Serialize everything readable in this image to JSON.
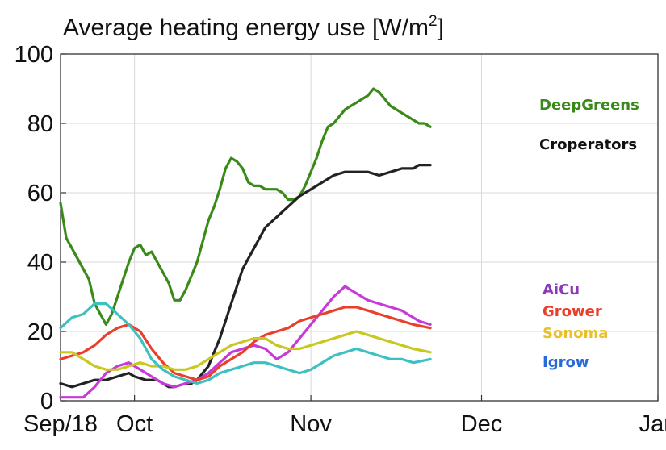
{
  "chart_data": {
    "type": "line",
    "title": "Average heating energy use [W/m",
    "title_sup": "2",
    "title_end": "]",
    "xlabel": "",
    "ylabel": "",
    "ylim": [
      0,
      100
    ],
    "xlim": [
      "2018-09-18",
      "2019-01-01"
    ],
    "y_ticks": [
      0,
      20,
      40,
      60,
      80,
      100
    ],
    "x_ticks": [
      {
        "date": "2018-09-18",
        "label": "Sep/18"
      },
      {
        "date": "2018-10-01",
        "label": "Oct"
      },
      {
        "date": "2018-11-01",
        "label": "Nov"
      },
      {
        "date": "2018-12-01",
        "label": "Dec"
      },
      {
        "date": "2019-01-01",
        "label": "Jan"
      }
    ],
    "grid": true,
    "series": [
      {
        "name": "DeepGreens",
        "color": "#3a8a1a",
        "label_color": "#3a8a1a",
        "points": [
          [
            "2018-09-18",
            57
          ],
          [
            "2018-09-19",
            47
          ],
          [
            "2018-09-20",
            44
          ],
          [
            "2018-09-21",
            41
          ],
          [
            "2018-09-22",
            38
          ],
          [
            "2018-09-23",
            35
          ],
          [
            "2018-09-24",
            28
          ],
          [
            "2018-09-25",
            25
          ],
          [
            "2018-09-26",
            22
          ],
          [
            "2018-09-27",
            25
          ],
          [
            "2018-09-28",
            30
          ],
          [
            "2018-09-29",
            35
          ],
          [
            "2018-09-30",
            40
          ],
          [
            "2018-10-01",
            44
          ],
          [
            "2018-10-02",
            45
          ],
          [
            "2018-10-03",
            42
          ],
          [
            "2018-10-04",
            43
          ],
          [
            "2018-10-05",
            40
          ],
          [
            "2018-10-06",
            37
          ],
          [
            "2018-10-07",
            34
          ],
          [
            "2018-10-08",
            29
          ],
          [
            "2018-10-09",
            29
          ],
          [
            "2018-10-10",
            32
          ],
          [
            "2018-10-11",
            36
          ],
          [
            "2018-10-12",
            40
          ],
          [
            "2018-10-13",
            46
          ],
          [
            "2018-10-14",
            52
          ],
          [
            "2018-10-15",
            56
          ],
          [
            "2018-10-16",
            61
          ],
          [
            "2018-10-17",
            67
          ],
          [
            "2018-10-18",
            70
          ],
          [
            "2018-10-19",
            69
          ],
          [
            "2018-10-20",
            67
          ],
          [
            "2018-10-21",
            63
          ],
          [
            "2018-10-22",
            62
          ],
          [
            "2018-10-23",
            62
          ],
          [
            "2018-10-24",
            61
          ],
          [
            "2018-10-25",
            61
          ],
          [
            "2018-10-26",
            61
          ],
          [
            "2018-10-27",
            60
          ],
          [
            "2018-10-28",
            58
          ],
          [
            "2018-10-29",
            58
          ],
          [
            "2018-10-30",
            59
          ],
          [
            "2018-10-31",
            62
          ],
          [
            "2018-11-01",
            66
          ],
          [
            "2018-11-02",
            70
          ],
          [
            "2018-11-03",
            75
          ],
          [
            "2018-11-04",
            79
          ],
          [
            "2018-11-05",
            80
          ],
          [
            "2018-11-06",
            82
          ],
          [
            "2018-11-07",
            84
          ],
          [
            "2018-11-08",
            85
          ],
          [
            "2018-11-09",
            86
          ],
          [
            "2018-11-10",
            87
          ],
          [
            "2018-11-11",
            88
          ],
          [
            "2018-11-12",
            90
          ],
          [
            "2018-11-13",
            89
          ],
          [
            "2018-11-14",
            87
          ],
          [
            "2018-11-15",
            85
          ],
          [
            "2018-11-16",
            84
          ],
          [
            "2018-11-17",
            83
          ],
          [
            "2018-11-18",
            82
          ],
          [
            "2018-11-19",
            81
          ],
          [
            "2018-11-20",
            80
          ],
          [
            "2018-11-21",
            80
          ],
          [
            "2018-11-22",
            79
          ]
        ]
      },
      {
        "name": "Croperators",
        "color": "#222222",
        "label_color": "#111111",
        "points": [
          [
            "2018-09-18",
            5
          ],
          [
            "2018-09-20",
            4
          ],
          [
            "2018-09-22",
            5
          ],
          [
            "2018-09-24",
            6
          ],
          [
            "2018-09-26",
            6
          ],
          [
            "2018-09-28",
            7
          ],
          [
            "2018-09-30",
            8
          ],
          [
            "2018-10-01",
            7
          ],
          [
            "2018-10-03",
            6
          ],
          [
            "2018-10-05",
            6
          ],
          [
            "2018-10-07",
            4
          ],
          [
            "2018-10-08",
            4
          ],
          [
            "2018-10-10",
            5
          ],
          [
            "2018-10-11",
            5
          ],
          [
            "2018-10-12",
            6
          ],
          [
            "2018-10-14",
            10
          ],
          [
            "2018-10-16",
            18
          ],
          [
            "2018-10-18",
            28
          ],
          [
            "2018-10-20",
            38
          ],
          [
            "2018-10-22",
            44
          ],
          [
            "2018-10-24",
            50
          ],
          [
            "2018-10-26",
            53
          ],
          [
            "2018-10-28",
            56
          ],
          [
            "2018-10-30",
            59
          ],
          [
            "2018-11-01",
            61
          ],
          [
            "2018-11-03",
            63
          ],
          [
            "2018-11-05",
            65
          ],
          [
            "2018-11-07",
            66
          ],
          [
            "2018-11-09",
            66
          ],
          [
            "2018-11-11",
            66
          ],
          [
            "2018-11-13",
            65
          ],
          [
            "2018-11-15",
            66
          ],
          [
            "2018-11-17",
            67
          ],
          [
            "2018-11-19",
            67
          ],
          [
            "2018-11-20",
            68
          ],
          [
            "2018-11-22",
            68
          ]
        ]
      },
      {
        "name": "AiCu",
        "color": "#c83ad8",
        "label_color": "#8a3ab8",
        "points": [
          [
            "2018-09-18",
            1
          ],
          [
            "2018-09-22",
            1
          ],
          [
            "2018-09-24",
            4
          ],
          [
            "2018-09-26",
            8
          ],
          [
            "2018-09-28",
            10
          ],
          [
            "2018-09-30",
            11
          ],
          [
            "2018-10-02",
            9
          ],
          [
            "2018-10-04",
            7
          ],
          [
            "2018-10-06",
            5
          ],
          [
            "2018-10-08",
            4
          ],
          [
            "2018-10-10",
            5
          ],
          [
            "2018-10-12",
            6
          ],
          [
            "2018-10-14",
            8
          ],
          [
            "2018-10-16",
            11
          ],
          [
            "2018-10-18",
            14
          ],
          [
            "2018-10-20",
            15
          ],
          [
            "2018-10-22",
            16
          ],
          [
            "2018-10-24",
            15
          ],
          [
            "2018-10-26",
            12
          ],
          [
            "2018-10-28",
            14
          ],
          [
            "2018-10-30",
            18
          ],
          [
            "2018-11-01",
            22
          ],
          [
            "2018-11-03",
            26
          ],
          [
            "2018-11-05",
            30
          ],
          [
            "2018-11-07",
            33
          ],
          [
            "2018-11-09",
            31
          ],
          [
            "2018-11-11",
            29
          ],
          [
            "2018-11-13",
            28
          ],
          [
            "2018-11-15",
            27
          ],
          [
            "2018-11-17",
            26
          ],
          [
            "2018-11-19",
            24
          ],
          [
            "2018-11-20",
            23
          ],
          [
            "2018-11-22",
            22
          ]
        ]
      },
      {
        "name": "Grower",
        "color": "#e8402a",
        "label_color": "#e8402a",
        "points": [
          [
            "2018-09-18",
            12
          ],
          [
            "2018-09-20",
            13
          ],
          [
            "2018-09-22",
            14
          ],
          [
            "2018-09-24",
            16
          ],
          [
            "2018-09-26",
            19
          ],
          [
            "2018-09-28",
            21
          ],
          [
            "2018-09-30",
            22
          ],
          [
            "2018-10-02",
            20
          ],
          [
            "2018-10-04",
            15
          ],
          [
            "2018-10-06",
            11
          ],
          [
            "2018-10-08",
            8
          ],
          [
            "2018-10-10",
            7
          ],
          [
            "2018-10-12",
            6
          ],
          [
            "2018-10-14",
            7
          ],
          [
            "2018-10-16",
            10
          ],
          [
            "2018-10-18",
            12
          ],
          [
            "2018-10-20",
            14
          ],
          [
            "2018-10-22",
            17
          ],
          [
            "2018-10-24",
            19
          ],
          [
            "2018-10-26",
            20
          ],
          [
            "2018-10-28",
            21
          ],
          [
            "2018-10-30",
            23
          ],
          [
            "2018-11-01",
            24
          ],
          [
            "2018-11-03",
            25
          ],
          [
            "2018-11-05",
            26
          ],
          [
            "2018-11-07",
            27
          ],
          [
            "2018-11-09",
            27
          ],
          [
            "2018-11-11",
            26
          ],
          [
            "2018-11-13",
            25
          ],
          [
            "2018-11-15",
            24
          ],
          [
            "2018-11-17",
            23
          ],
          [
            "2018-11-19",
            22
          ],
          [
            "2018-11-22",
            21
          ]
        ]
      },
      {
        "name": "Sonoma",
        "color": "#c8c820",
        "label_color": "#e8c02a",
        "points": [
          [
            "2018-09-18",
            14
          ],
          [
            "2018-09-20",
            14
          ],
          [
            "2018-09-22",
            12
          ],
          [
            "2018-09-24",
            10
          ],
          [
            "2018-09-26",
            9
          ],
          [
            "2018-09-28",
            9
          ],
          [
            "2018-09-30",
            10
          ],
          [
            "2018-10-02",
            11
          ],
          [
            "2018-10-04",
            10
          ],
          [
            "2018-10-06",
            10
          ],
          [
            "2018-10-08",
            9
          ],
          [
            "2018-10-10",
            9
          ],
          [
            "2018-10-12",
            10
          ],
          [
            "2018-10-14",
            12
          ],
          [
            "2018-10-16",
            14
          ],
          [
            "2018-10-18",
            16
          ],
          [
            "2018-10-20",
            17
          ],
          [
            "2018-10-22",
            18
          ],
          [
            "2018-10-24",
            18
          ],
          [
            "2018-10-26",
            16
          ],
          [
            "2018-10-28",
            15
          ],
          [
            "2018-10-30",
            15
          ],
          [
            "2018-11-01",
            16
          ],
          [
            "2018-11-03",
            17
          ],
          [
            "2018-11-05",
            18
          ],
          [
            "2018-11-07",
            19
          ],
          [
            "2018-11-09",
            20
          ],
          [
            "2018-11-11",
            19
          ],
          [
            "2018-11-13",
            18
          ],
          [
            "2018-11-15",
            17
          ],
          [
            "2018-11-17",
            16
          ],
          [
            "2018-11-19",
            15
          ],
          [
            "2018-11-22",
            14
          ]
        ]
      },
      {
        "name": "Igrow",
        "color": "#3cc0c0",
        "label_color": "#2a6ad8",
        "points": [
          [
            "2018-09-18",
            21
          ],
          [
            "2018-09-20",
            24
          ],
          [
            "2018-09-22",
            25
          ],
          [
            "2018-09-24",
            28
          ],
          [
            "2018-09-26",
            28
          ],
          [
            "2018-09-28",
            25
          ],
          [
            "2018-09-30",
            22
          ],
          [
            "2018-10-02",
            18
          ],
          [
            "2018-10-04",
            12
          ],
          [
            "2018-10-06",
            9
          ],
          [
            "2018-10-08",
            7
          ],
          [
            "2018-10-10",
            6
          ],
          [
            "2018-10-12",
            5
          ],
          [
            "2018-10-14",
            6
          ],
          [
            "2018-10-16",
            8
          ],
          [
            "2018-10-18",
            9
          ],
          [
            "2018-10-20",
            10
          ],
          [
            "2018-10-22",
            11
          ],
          [
            "2018-10-24",
            11
          ],
          [
            "2018-10-26",
            10
          ],
          [
            "2018-10-28",
            9
          ],
          [
            "2018-10-30",
            8
          ],
          [
            "2018-11-01",
            9
          ],
          [
            "2018-11-03",
            11
          ],
          [
            "2018-11-05",
            13
          ],
          [
            "2018-11-07",
            14
          ],
          [
            "2018-11-09",
            15
          ],
          [
            "2018-11-11",
            14
          ],
          [
            "2018-11-13",
            13
          ],
          [
            "2018-11-15",
            12
          ],
          [
            "2018-11-17",
            12
          ],
          [
            "2018-11-19",
            11
          ],
          [
            "2018-11-22",
            12
          ]
        ]
      }
    ]
  }
}
